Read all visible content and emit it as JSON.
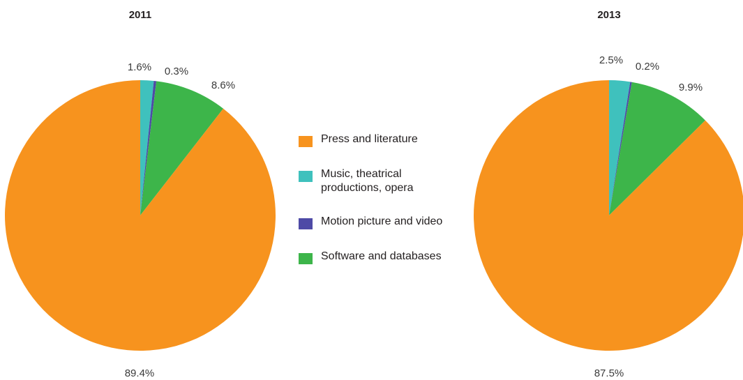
{
  "chart_data": [
    {
      "type": "pie",
      "title": "2011",
      "categories": [
        "Press and literature",
        "Music, theatrical productions, opera",
        "Motion picture and video",
        "Software and databases"
      ],
      "values": [
        89.4,
        1.6,
        0.3,
        8.6
      ],
      "labels": [
        "89.4%",
        "1.6%",
        "0.3%",
        "8.6%"
      ],
      "start_angle_deg": 0,
      "direction": "clockwise",
      "slice_order": [
        "Music, theatrical productions, opera",
        "Motion picture and video",
        "Software and databases",
        "Press and literature"
      ]
    },
    {
      "type": "pie",
      "title": "2013",
      "categories": [
        "Press and literature",
        "Music, theatrical productions, opera",
        "Motion picture and video",
        "Software and databases"
      ],
      "values": [
        87.5,
        2.5,
        0.2,
        9.9
      ],
      "labels": [
        "87.5%",
        "2.5%",
        "0.2%",
        "9.9%"
      ],
      "start_angle_deg": 0,
      "direction": "clockwise",
      "slice_order": [
        "Music, theatrical productions, opera",
        "Motion picture and video",
        "Software and databases",
        "Press and literature"
      ]
    }
  ],
  "legend": {
    "placement": "center",
    "items": [
      {
        "label": "Press and literature",
        "color": "#f7931e"
      },
      {
        "label": "Music, theatrical productions, opera",
        "color": "#3fc1bd"
      },
      {
        "label": "Motion picture and video",
        "color": "#4e4aa6"
      },
      {
        "label": "Software and databases",
        "color": "#3db54a"
      }
    ]
  }
}
